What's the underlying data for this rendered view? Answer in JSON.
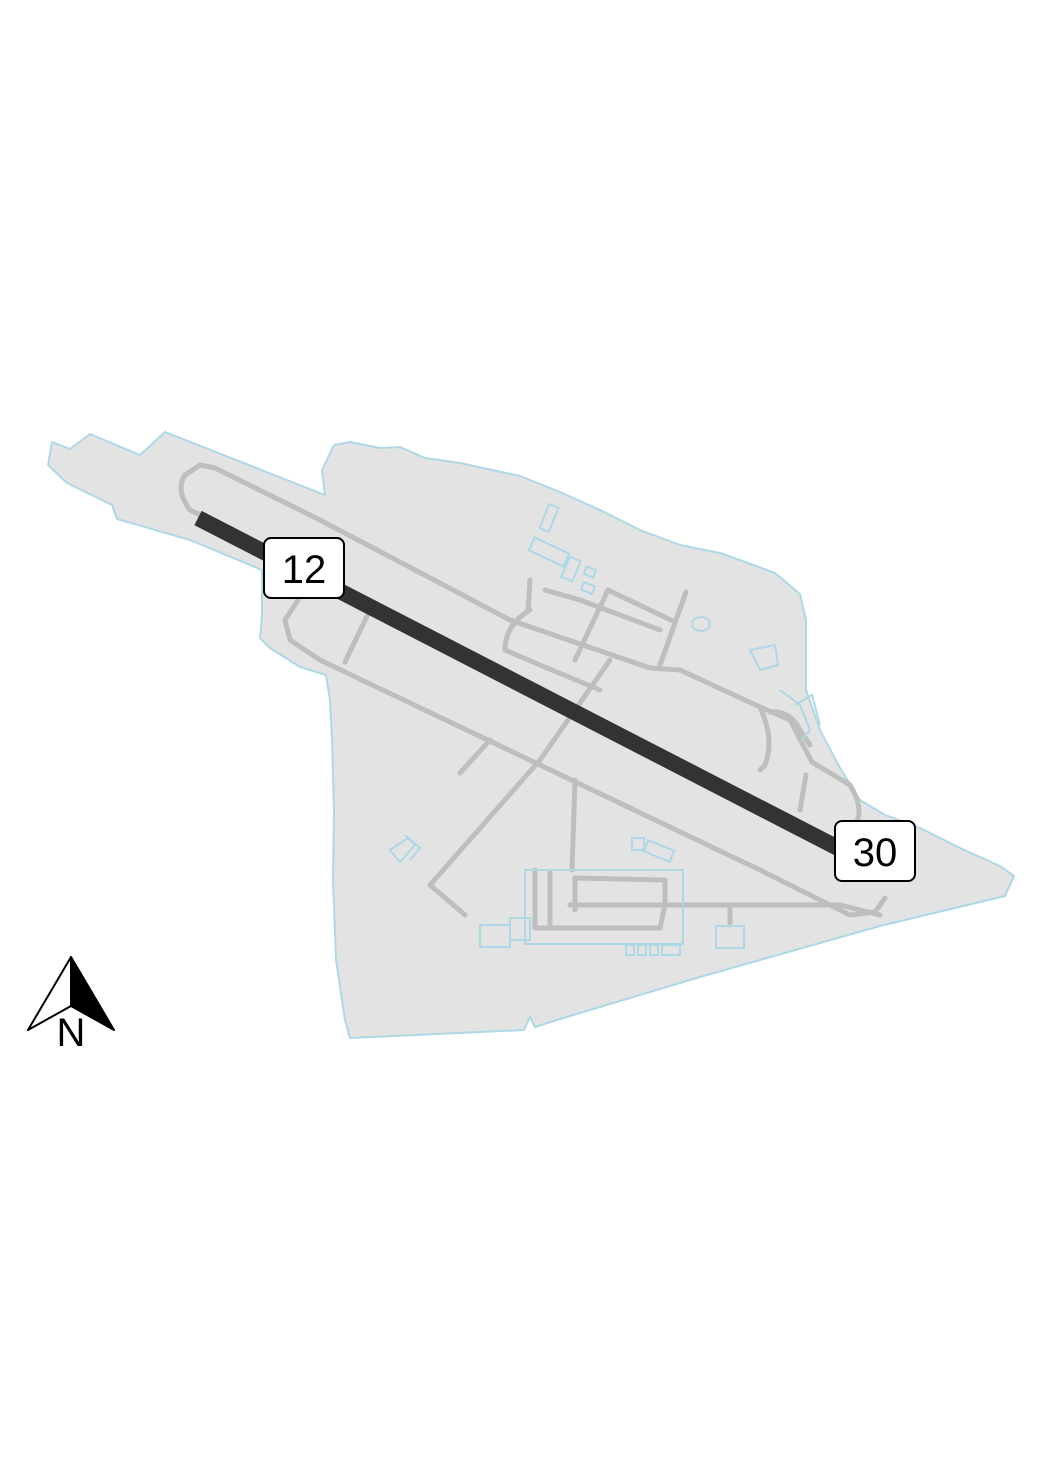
{
  "map": {
    "colors": {
      "airport_fill": "#e3e3e3",
      "boundary_stroke": "#add8e6",
      "taxiway": "#bebebe",
      "runway": "#333333",
      "label_bg": "#ffffff",
      "label_border": "#000000"
    },
    "runways": [
      {
        "id": "12-30",
        "ends": [
          "12",
          "30"
        ]
      }
    ],
    "labels": {
      "runway_end_a": "12",
      "runway_end_b": "30"
    },
    "north_arrow": {
      "icon": "north-arrow-icon",
      "letter": "N"
    }
  }
}
